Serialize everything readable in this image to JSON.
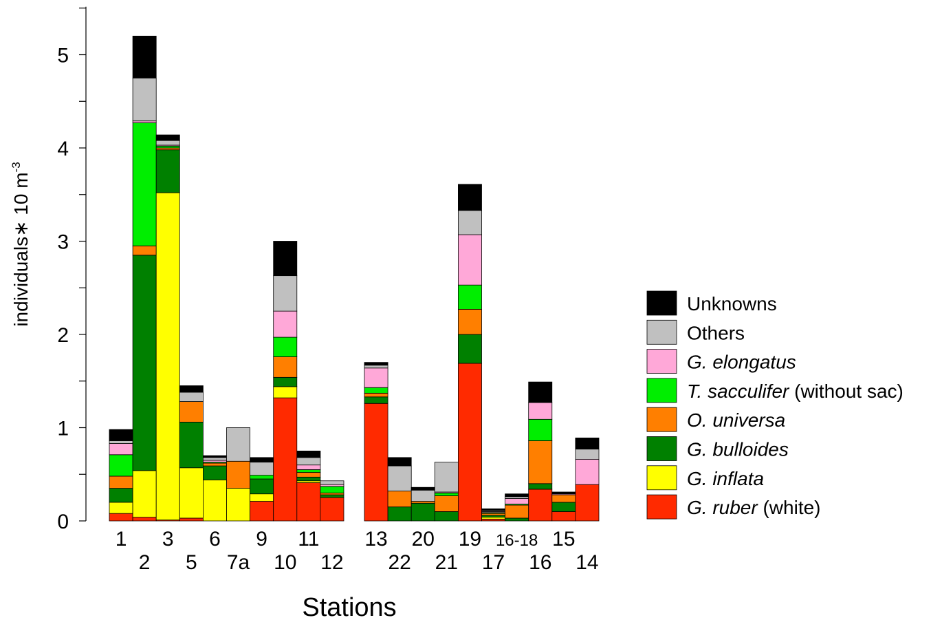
{
  "chart_data": {
    "type": "bar",
    "stacked": true,
    "ylabel": "individuals∗ 10 m",
    "ylabel_superscript": "-3",
    "xlabel": "Stations",
    "ylim": [
      0,
      5.5
    ],
    "yticks": [
      "0",
      "1",
      "2",
      "3",
      "4",
      "5"
    ],
    "gap_before_index": 10,
    "categories": [
      "1",
      "2",
      "3",
      "5",
      "6",
      "7a",
      "9",
      "10",
      "11",
      "12",
      "13",
      "22",
      "20",
      "21",
      "19",
      "17",
      "16-18",
      "16",
      "15",
      "14"
    ],
    "label_row": [
      "top",
      "bottom",
      "top",
      "bottom",
      "top",
      "bottom",
      "top",
      "bottom",
      "top",
      "bottom",
      "top",
      "bottom",
      "top",
      "bottom",
      "top",
      "bottom",
      "top",
      "bottom",
      "top",
      "bottom"
    ],
    "series": [
      {
        "name": "G. ruber",
        "suffix": " (white)",
        "italic": true,
        "color": "#ff2a00",
        "values": [
          0.08,
          0.04,
          0.01,
          0.03,
          0.0,
          0.0,
          0.21,
          1.32,
          0.41,
          0.25,
          1.26,
          0.0,
          0.0,
          0.0,
          1.69,
          0.02,
          0.0,
          0.34,
          0.1,
          0.39
        ]
      },
      {
        "name": "G. inflata",
        "suffix": "",
        "italic": true,
        "color": "#ffff00",
        "values": [
          0.12,
          0.5,
          3.51,
          0.54,
          0.44,
          0.35,
          0.08,
          0.12,
          0.02,
          0.0,
          0.0,
          0.0,
          0.0,
          0.0,
          0.0,
          0.02,
          0.0,
          0.0,
          0.0,
          0.0
        ]
      },
      {
        "name": "G. bulloides",
        "suffix": "",
        "italic": true,
        "color": "#008000",
        "values": [
          0.15,
          2.31,
          0.46,
          0.49,
          0.15,
          0.0,
          0.16,
          0.1,
          0.04,
          0.03,
          0.07,
          0.15,
          0.19,
          0.1,
          0.31,
          0.02,
          0.03,
          0.06,
          0.1,
          0.0
        ]
      },
      {
        "name": "O. universa",
        "suffix": "",
        "italic": true,
        "color": "#ff7f00",
        "values": [
          0.13,
          0.1,
          0.02,
          0.22,
          0.03,
          0.29,
          0.0,
          0.22,
          0.05,
          0.02,
          0.04,
          0.17,
          0.02,
          0.17,
          0.27,
          0.02,
          0.14,
          0.46,
          0.08,
          0.0
        ]
      },
      {
        "name": "T. sacculifer",
        "suffix": " (without sac)",
        "italic": true,
        "color": "#00ee00",
        "values": [
          0.23,
          1.32,
          0.02,
          0.0,
          0.01,
          0.0,
          0.04,
          0.21,
          0.03,
          0.07,
          0.06,
          0.0,
          0.0,
          0.03,
          0.26,
          0.01,
          0.01,
          0.23,
          0.0,
          0.0
        ]
      },
      {
        "name": "G. elongatus",
        "suffix": "",
        "italic": true,
        "color": "#ffa8d8",
        "values": [
          0.12,
          0.02,
          0.01,
          0.0,
          0.02,
          0.0,
          0.0,
          0.28,
          0.05,
          0.02,
          0.21,
          0.0,
          0.0,
          0.01,
          0.54,
          0.01,
          0.06,
          0.18,
          0.01,
          0.27
        ]
      },
      {
        "name": "Others",
        "suffix": "",
        "italic": false,
        "color": "#c0c0c0",
        "values": [
          0.03,
          0.46,
          0.05,
          0.1,
          0.03,
          0.36,
          0.14,
          0.38,
          0.08,
          0.04,
          0.03,
          0.27,
          0.12,
          0.32,
          0.26,
          0.01,
          0.02,
          0.0,
          0.0,
          0.11
        ]
      },
      {
        "name": "Unknowns",
        "suffix": "",
        "italic": false,
        "color": "#000000",
        "values": [
          0.12,
          0.45,
          0.06,
          0.07,
          0.02,
          0.0,
          0.05,
          0.37,
          0.07,
          0.0,
          0.03,
          0.09,
          0.03,
          0.0,
          0.28,
          0.02,
          0.03,
          0.22,
          0.02,
          0.12
        ]
      }
    ]
  }
}
